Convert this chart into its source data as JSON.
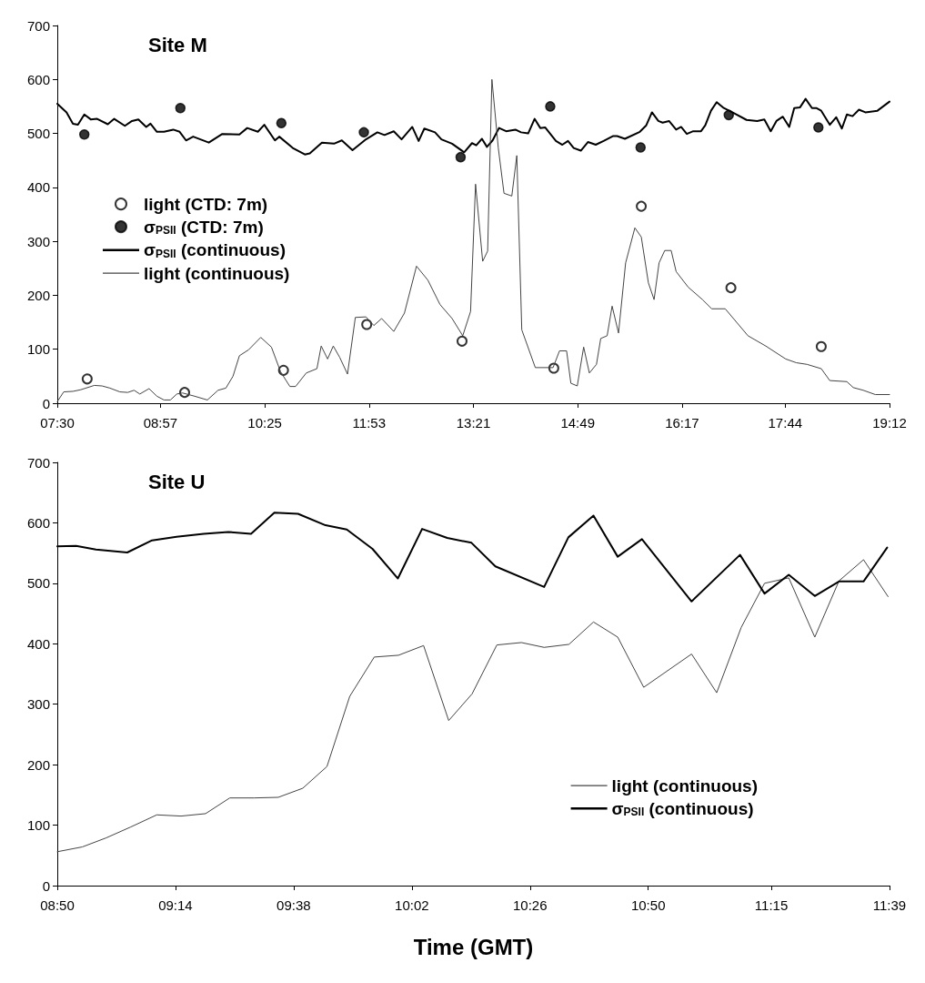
{
  "chart_data": [
    {
      "type": "line",
      "title": "Site M",
      "xlim": [
        7.5,
        19.2
      ],
      "xticks": [
        {
          "value": 7.5,
          "label": "07:30"
        },
        {
          "value": 8.95,
          "label": "08:57"
        },
        {
          "value": 10.4167,
          "label": "10:25"
        },
        {
          "value": 11.8833,
          "label": "11:53"
        },
        {
          "value": 13.35,
          "label": "13:21"
        },
        {
          "value": 14.8167,
          "label": "14:49"
        },
        {
          "value": 16.2833,
          "label": "16:17"
        },
        {
          "value": 17.7333,
          "label": "17:44"
        },
        {
          "value": 19.2,
          "label": "19:12"
        }
      ],
      "ylim": [
        0,
        700
      ],
      "yticks": [
        0,
        100,
        200,
        300,
        400,
        500,
        600,
        700
      ],
      "grid": false,
      "legend": "left",
      "series": [
        {
          "name": "light (CTD: 7m)",
          "type": "scatter",
          "marker": "open circle",
          "color": "#000000",
          "x": [
            7.92,
            9.29,
            10.68,
            11.85,
            13.19,
            14.48,
            15.71,
            16.97,
            18.24
          ],
          "values": [
            45,
            20,
            61,
            146,
            115,
            65,
            365,
            214,
            105
          ]
        },
        {
          "name": "σ$_{PSII}$ (CTD: 7m)",
          "type": "scatter",
          "marker": "circle",
          "color": "#000000",
          "x": [
            7.88,
            9.23,
            10.65,
            11.81,
            13.17,
            14.43,
            15.7,
            16.94,
            18.2
          ],
          "values": [
            498,
            547,
            519,
            502,
            456,
            550,
            474,
            534,
            511
          ]
        },
        {
          "name": "σ$_{PSII}$ (continuous)",
          "color": "#000000",
          "x": [
            7.5,
            7.63,
            7.72,
            7.79,
            7.88,
            7.97,
            8.06,
            8.21,
            8.3,
            8.45,
            8.55,
            8.64,
            8.75,
            8.81,
            8.9,
            9.0,
            9.13,
            9.22,
            9.31,
            9.41,
            9.63,
            9.82,
            10.06,
            10.17,
            10.32,
            10.41,
            10.56,
            10.62,
            10.81,
            10.98,
            11.05,
            11.22,
            11.39,
            11.5,
            11.65,
            11.84,
            12.0,
            12.1,
            12.23,
            12.34,
            12.49,
            12.58,
            12.66,
            12.81,
            12.9,
            13.05,
            13.22,
            13.33,
            13.39,
            13.47,
            13.54,
            13.62,
            13.71,
            13.81,
            13.94,
            14.02,
            14.12,
            14.21,
            14.29,
            14.36,
            14.51,
            14.6,
            14.68,
            14.76,
            14.86,
            14.96,
            15.07,
            15.18,
            15.31,
            15.37,
            15.48,
            15.69,
            15.78,
            15.86,
            15.95,
            16.01,
            16.1,
            16.2,
            16.27,
            16.35,
            16.44,
            16.55,
            16.61,
            16.69,
            16.77,
            16.87,
            16.99,
            17.19,
            17.34,
            17.44,
            17.53,
            17.61,
            17.7,
            17.79,
            17.86,
            17.94,
            18.02,
            18.11,
            18.17,
            18.24,
            18.36,
            18.45,
            18.53,
            18.6,
            18.68,
            18.77,
            18.86,
            19.03,
            19.2
          ],
          "values": [
            555,
            539,
            518,
            516,
            535,
            526,
            527,
            517,
            527,
            514,
            523,
            526,
            512,
            518,
            503,
            503,
            507,
            503,
            487,
            494,
            483,
            499,
            498,
            510,
            503,
            516,
            487,
            494,
            473,
            461,
            463,
            483,
            481,
            487,
            469,
            489,
            502,
            497,
            504,
            489,
            512,
            486,
            509,
            502,
            489,
            481,
            465,
            482,
            478,
            490,
            475,
            487,
            510,
            504,
            507,
            502,
            500,
            527,
            510,
            511,
            486,
            479,
            486,
            473,
            468,
            484,
            479,
            486,
            495,
            495,
            490,
            503,
            515,
            539,
            523,
            520,
            523,
            507,
            512,
            499,
            504,
            504,
            515,
            542,
            558,
            547,
            539,
            525,
            523,
            526,
            504,
            523,
            531,
            512,
            547,
            548,
            564,
            547,
            547,
            542,
            516,
            530,
            509,
            535,
            532,
            544,
            539,
            542,
            559
          ]
        },
        {
          "name": "light (continuous)",
          "color": "#444444",
          "x": [
            7.5,
            7.59,
            7.72,
            7.83,
            8.02,
            8.13,
            8.24,
            8.38,
            8.49,
            8.58,
            8.66,
            8.79,
            8.9,
            9.0,
            9.09,
            9.18,
            9.26,
            9.43,
            9.61,
            9.76,
            9.87,
            9.97,
            10.06,
            10.19,
            10.36,
            10.51,
            10.64,
            10.77,
            10.85,
            11.0,
            11.15,
            11.21,
            11.3,
            11.38,
            11.47,
            11.58,
            11.69,
            11.84,
            11.95,
            12.06,
            12.23,
            12.38,
            12.55,
            12.71,
            12.88,
            13.05,
            13.2,
            13.31,
            13.38,
            13.48,
            13.55,
            13.61,
            13.7,
            13.78,
            13.89,
            13.96,
            14.03,
            14.22,
            14.47,
            14.56,
            14.66,
            14.72,
            14.81,
            14.9,
            14.98,
            15.08,
            15.14,
            15.23,
            15.3,
            15.39,
            15.49,
            15.62,
            15.71,
            15.81,
            15.89,
            15.96,
            16.04,
            16.13,
            16.2,
            16.37,
            16.57,
            16.7,
            16.89,
            17.05,
            17.21,
            17.46,
            17.74,
            17.89,
            18.04,
            18.24,
            18.36,
            18.6,
            18.69,
            18.83,
            19.0,
            19.2
          ],
          "values": [
            3,
            21,
            22,
            25,
            33,
            32,
            28,
            21,
            20,
            24,
            17,
            27,
            13,
            6,
            6,
            17,
            19,
            13,
            6,
            24,
            28,
            50,
            88,
            99,
            122,
            104,
            58,
            31,
            31,
            56,
            64,
            106,
            82,
            106,
            85,
            54,
            159,
            160,
            144,
            157,
            133,
            167,
            254,
            228,
            183,
            157,
            125,
            170,
            406,
            263,
            282,
            600,
            473,
            389,
            384,
            459,
            136,
            66,
            66,
            97,
            97,
            37,
            32,
            104,
            56,
            72,
            120,
            125,
            180,
            130,
            260,
            325,
            308,
            223,
            192,
            260,
            283,
            283,
            244,
            215,
            192,
            175,
            175,
            150,
            125,
            106,
            82,
            75,
            72,
            64,
            42,
            40,
            29,
            24,
            16,
            16
          ]
        }
      ]
    },
    {
      "type": "line",
      "title": "Site U",
      "xlabel": "Time (GMT)",
      "xlim": [
        8.8333,
        11.65
      ],
      "xticks": [
        {
          "value": 8.8333,
          "label": "08:50"
        },
        {
          "value": 9.2333,
          "label": "09:14"
        },
        {
          "value": 9.6333,
          "label": "09:38"
        },
        {
          "value": 10.0333,
          "label": "10:02"
        },
        {
          "value": 10.4333,
          "label": "10:26"
        },
        {
          "value": 10.8333,
          "label": "10:50"
        },
        {
          "value": 11.25,
          "label": "11:15"
        },
        {
          "value": 11.65,
          "label": "11:39"
        }
      ],
      "ylim": [
        0,
        700
      ],
      "yticks": [
        0,
        100,
        200,
        300,
        400,
        500,
        600,
        700
      ],
      "grid": false,
      "legend": "bottom right",
      "series": [
        {
          "name": "light (continuous)",
          "color": "#444444",
          "x": [
            8.8333,
            8.918,
            8.999,
            9.082,
            9.17,
            9.252,
            9.335,
            9.417,
            9.499,
            9.581,
            9.664,
            9.746,
            9.823,
            9.906,
            9.988,
            10.073,
            10.158,
            10.237,
            10.321,
            10.404,
            10.481,
            10.565,
            10.648,
            10.73,
            10.818,
            10.98,
            11.065,
            11.148,
            11.227,
            11.309,
            11.397,
            11.479,
            11.562,
            11.645
          ],
          "values": [
            56,
            64,
            79,
            97,
            117,
            115,
            119,
            145,
            145,
            146,
            161,
            197,
            313,
            378,
            381,
            397,
            273,
            317,
            398,
            402,
            394,
            399,
            436,
            411,
            328,
            383,
            319,
            427,
            500,
            509,
            411,
            504,
            539,
            478
          ]
        },
        {
          "name": "σ$_{PSII}$ (continuous)",
          "color": "#000000",
          "x": [
            8.8333,
            8.897,
            8.964,
            9.07,
            9.154,
            9.237,
            9.329,
            9.412,
            9.489,
            9.568,
            9.648,
            9.741,
            9.813,
            9.9,
            9.986,
            10.068,
            10.153,
            10.235,
            10.316,
            10.481,
            10.563,
            10.648,
            10.73,
            10.812,
            10.98,
            11.144,
            11.227,
            11.309,
            11.397,
            11.479,
            11.562,
            11.642
          ],
          "values": [
            561,
            562,
            556,
            551,
            571,
            577,
            582,
            585,
            582,
            617,
            615,
            596,
            589,
            557,
            508,
            590,
            575,
            567,
            528,
            494,
            576,
            612,
            544,
            573,
            470,
            547,
            483,
            514,
            479,
            503,
            503,
            559
          ]
        }
      ]
    }
  ]
}
